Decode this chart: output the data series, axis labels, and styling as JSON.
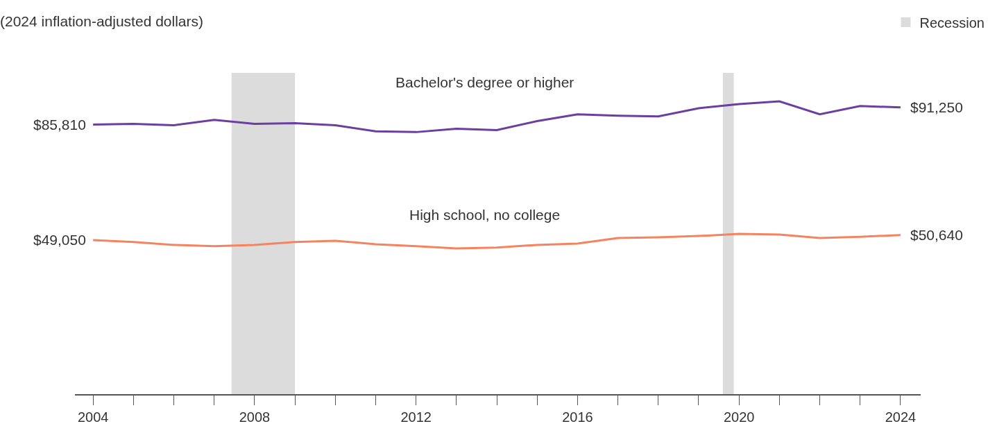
{
  "chart_data": {
    "type": "line",
    "subtitle": "(2024 inflation-adjusted dollars)",
    "x": [
      2004,
      2005,
      2006,
      2007,
      2008,
      2009,
      2010,
      2011,
      2012,
      2013,
      2014,
      2015,
      2016,
      2017,
      2018,
      2019,
      2020,
      2021,
      2022,
      2023,
      2024
    ],
    "series": [
      {
        "name": "Bachelor's degree or higher",
        "color": "#6b3fa0",
        "values": [
          85810,
          86000,
          85600,
          87300,
          86000,
          86240,
          85600,
          83650,
          83400,
          84500,
          84060,
          86900,
          89070,
          88630,
          88400,
          91000,
          92300,
          93200,
          89070,
          91700,
          91250
        ],
        "value_labels": [
          "$85,810",
          null,
          null,
          null,
          null,
          null,
          null,
          null,
          null,
          null,
          null,
          null,
          null,
          null,
          null,
          null,
          null,
          null,
          null,
          null,
          "$91,250"
        ]
      },
      {
        "name": "High school, no college",
        "color": "#f4845f",
        "values": [
          49050,
          48400,
          47500,
          47100,
          47500,
          48400,
          48830,
          47700,
          47100,
          46400,
          46650,
          47500,
          47900,
          49700,
          49900,
          50330,
          51000,
          50770,
          49700,
          50100,
          50640
        ],
        "value_labels": [
          "$49,050",
          null,
          null,
          null,
          null,
          null,
          null,
          null,
          null,
          null,
          null,
          null,
          null,
          null,
          null,
          null,
          null,
          null,
          null,
          null,
          "$50,640"
        ]
      }
    ],
    "xlim": [
      2003.55,
      2024.5
    ],
    "xticks": [
      2004,
      {
        "value": 2005,
        "label": null
      },
      {
        "value": 2006,
        "label": null
      },
      {
        "value": 2007,
        "label": null
      },
      2008,
      {
        "value": 2009,
        "label": null
      },
      {
        "value": 2010,
        "label": null
      },
      {
        "value": 2011,
        "label": null
      },
      2012,
      {
        "value": 2013,
        "label": null
      },
      {
        "value": 2014,
        "label": null
      },
      {
        "value": 2015,
        "label": null
      },
      2016,
      {
        "value": 2017,
        "label": null
      },
      {
        "value": 2018,
        "label": null
      },
      {
        "value": 2019,
        "label": null
      },
      2020,
      {
        "value": 2021,
        "label": null
      },
      {
        "value": 2022,
        "label": null
      },
      {
        "value": 2023,
        "label": null
      },
      2024
    ],
    "bands": [
      {
        "axis": "x",
        "from": 2007.43,
        "to": 2009.0,
        "label": "Recession",
        "color": "#dcdcdc"
      },
      {
        "axis": "x",
        "from": 2019.6,
        "to": 2019.87,
        "color": "#dcdcdc"
      }
    ],
    "tick_labels": "x",
    "grid": false,
    "legend": "top right",
    "marker": "none",
    "line_style": "solid"
  }
}
